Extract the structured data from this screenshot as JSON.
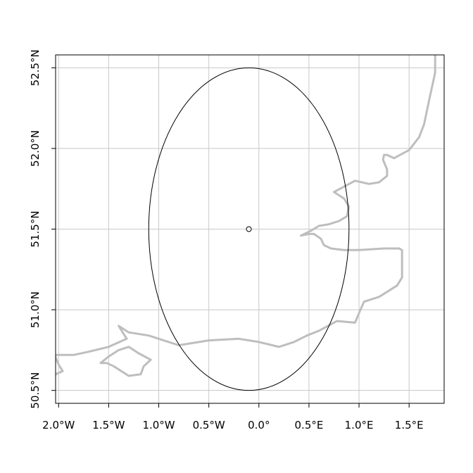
{
  "chart_data": {
    "type": "map",
    "title": "",
    "xlabel": "",
    "ylabel": "",
    "xlim": [
      -2.03,
      1.85
    ],
    "ylim": [
      50.42,
      52.58
    ],
    "grid": true,
    "x_ticks": [
      {
        "value": -2.0,
        "label": "2.0°W"
      },
      {
        "value": -1.5,
        "label": "1.5°W"
      },
      {
        "value": -1.0,
        "label": "1.0°W"
      },
      {
        "value": -0.5,
        "label": "0.5°W"
      },
      {
        "value": 0.0,
        "label": "0.0°"
      },
      {
        "value": 0.5,
        "label": "0.5°E"
      },
      {
        "value": 1.0,
        "label": "1.0°E"
      },
      {
        "value": 1.5,
        "label": "1.5°E"
      }
    ],
    "y_ticks": [
      {
        "value": 50.5,
        "label": "50.5°N"
      },
      {
        "value": 51.0,
        "label": "51.0°N"
      },
      {
        "value": 51.5,
        "label": "51.5°N"
      },
      {
        "value": 52.0,
        "label": "52.0°N"
      },
      {
        "value": 52.5,
        "label": "52.5°N"
      }
    ],
    "center_point": {
      "lon": -0.1,
      "lat": 51.5
    },
    "ellipse": {
      "lon": -0.1,
      "lat": 51.5,
      "half_width_lon": 1.0,
      "half_height_lat": 1.0
    },
    "coastlines": [
      [
        [
          1.76,
          52.58
        ],
        [
          1.76,
          52.47
        ],
        [
          1.7,
          52.3
        ],
        [
          1.65,
          52.15
        ],
        [
          1.6,
          52.07
        ],
        [
          1.5,
          51.99
        ],
        [
          1.35,
          51.94
        ],
        [
          1.28,
          51.96
        ],
        [
          1.25,
          51.96
        ],
        [
          1.24,
          51.93
        ],
        [
          1.28,
          51.87
        ],
        [
          1.28,
          51.83
        ],
        [
          1.2,
          51.79
        ],
        [
          1.1,
          51.78
        ],
        [
          0.96,
          51.8
        ],
        [
          0.75,
          51.73
        ],
        [
          0.85,
          51.69
        ],
        [
          0.9,
          51.64
        ],
        [
          0.88,
          51.58
        ],
        [
          0.8,
          51.55
        ],
        [
          0.7,
          51.53
        ],
        [
          0.6,
          51.52
        ],
        [
          0.52,
          51.49
        ],
        [
          0.42,
          51.46
        ],
        [
          0.5,
          51.47
        ],
        [
          0.55,
          51.47
        ],
        [
          0.62,
          51.44
        ],
        [
          0.65,
          51.4
        ],
        [
          0.72,
          51.38
        ],
        [
          0.85,
          51.37
        ],
        [
          1.0,
          51.37
        ],
        [
          1.25,
          51.38
        ],
        [
          1.4,
          51.38
        ],
        [
          1.43,
          51.37
        ],
        [
          1.43,
          51.2
        ],
        [
          1.38,
          51.15
        ],
        [
          1.2,
          51.08
        ],
        [
          1.05,
          51.05
        ],
        [
          1.0,
          50.98
        ],
        [
          0.96,
          50.92
        ],
        [
          0.78,
          50.93
        ],
        [
          0.6,
          50.87
        ],
        [
          0.48,
          50.84
        ],
        [
          0.35,
          50.8
        ],
        [
          0.2,
          50.77
        ],
        [
          0.0,
          50.8
        ],
        [
          -0.2,
          50.82
        ],
        [
          -0.5,
          50.81
        ],
        [
          -0.8,
          50.78
        ],
        [
          -1.0,
          50.82
        ],
        [
          -1.1,
          50.84
        ],
        [
          -1.3,
          50.86
        ],
        [
          -1.4,
          50.9
        ],
        [
          -1.32,
          50.82
        ],
        [
          -1.5,
          50.77
        ],
        [
          -1.7,
          50.74
        ],
        [
          -1.85,
          50.72
        ],
        [
          -2.04,
          50.72
        ]
      ],
      [
        [
          -1.58,
          50.67
        ],
        [
          -1.5,
          50.71
        ],
        [
          -1.4,
          50.75
        ],
        [
          -1.3,
          50.77
        ],
        [
          -1.2,
          50.73
        ],
        [
          -1.08,
          50.69
        ],
        [
          -1.15,
          50.65
        ],
        [
          -1.18,
          50.6
        ],
        [
          -1.3,
          50.59
        ],
        [
          -1.45,
          50.65
        ],
        [
          -1.52,
          50.67
        ],
        [
          -1.58,
          50.67
        ]
      ],
      [
        [
          -2.04,
          50.72
        ],
        [
          -2.0,
          50.66
        ],
        [
          -1.96,
          50.62
        ],
        [
          -2.03,
          50.6
        ]
      ]
    ]
  }
}
